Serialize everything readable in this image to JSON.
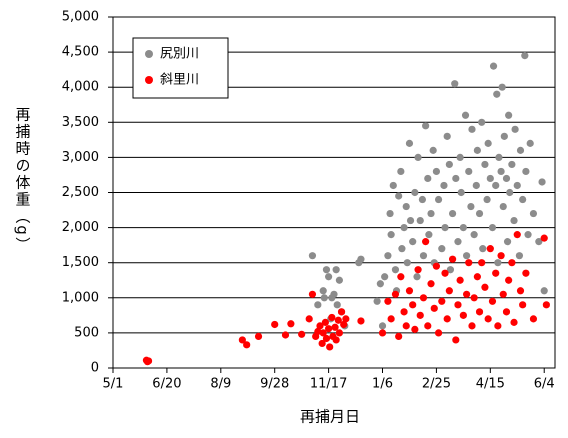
{
  "chart_data": {
    "type": "scatter",
    "x_label": "再捕月日",
    "y_label": "再捕時の体重（g）",
    "xlim": [
      0,
      410
    ],
    "ylim": [
      0,
      5000
    ],
    "xticks": [
      {
        "value": 0,
        "label": "5/1"
      },
      {
        "value": 50,
        "label": "6/20"
      },
      {
        "value": 100,
        "label": "8/9"
      },
      {
        "value": 150,
        "label": "9/28"
      },
      {
        "value": 200,
        "label": "11/17"
      },
      {
        "value": 250,
        "label": "1/6"
      },
      {
        "value": 300,
        "label": "2/25"
      },
      {
        "value": 350,
        "label": "4/15"
      },
      {
        "value": 400,
        "label": "6/4"
      }
    ],
    "yticks": [
      0,
      500,
      {
        "value": 1000,
        "label": "1,000"
      },
      {
        "value": 1500,
        "label": "1,500"
      },
      {
        "value": 2000,
        "label": "2,000"
      },
      {
        "value": 2500,
        "label": "2,500"
      },
      {
        "value": 3000,
        "label": "3,000"
      },
      {
        "value": 3500,
        "label": "3,500"
      },
      {
        "value": 4000,
        "label": "4,000"
      },
      {
        "value": 4500,
        "label": "4,500"
      },
      {
        "value": 5000,
        "label": "5,000"
      }
    ],
    "grid": true,
    "legend": "upper-left",
    "series": [
      {
        "name": "尻別川",
        "color": "#8c8c8c",
        "x": [
          185,
          190,
          195,
          198,
          200,
          203,
          205,
          207,
          210,
          212,
          215,
          202,
          208,
          230,
          228,
          196,
          250,
          252,
          255,
          257,
          258,
          260,
          262,
          263,
          265,
          267,
          268,
          270,
          272,
          273,
          275,
          276,
          278,
          280,
          282,
          283,
          285,
          287,
          288,
          290,
          292,
          293,
          295,
          297,
          298,
          300,
          302,
          305,
          307,
          308,
          310,
          312,
          313,
          315,
          317,
          318,
          320,
          322,
          323,
          325,
          327,
          328,
          330,
          332,
          333,
          335,
          337,
          338,
          340,
          342,
          343,
          345,
          347,
          348,
          350,
          352,
          353,
          355,
          356,
          357,
          358,
          360,
          361,
          362,
          363,
          365,
          366,
          367,
          368,
          370,
          372,
          373,
          375,
          377,
          378,
          380,
          382,
          383,
          385,
          387,
          390,
          395,
          398,
          400,
          245,
          248
        ],
        "values": [
          1600,
          900,
          1100,
          1400,
          1300,
          1000,
          1050,
          1400,
          1250,
          800,
          600,
          700,
          900,
          1550,
          1500,
          1000,
          600,
          1300,
          1600,
          2200,
          1900,
          2600,
          1400,
          1100,
          2450,
          2800,
          1700,
          2000,
          2300,
          1500,
          3200,
          2100,
          1800,
          2500,
          1300,
          3000,
          2100,
          2400,
          1600,
          3450,
          2700,
          1900,
          2200,
          3100,
          1500,
          2800,
          2400,
          1700,
          2600,
          2000,
          3300,
          2900,
          1400,
          2200,
          4050,
          2700,
          1800,
          3000,
          2500,
          2000,
          3600,
          1600,
          2800,
          2300,
          3400,
          1900,
          2600,
          3100,
          2200,
          3500,
          1700,
          2900,
          2400,
          3200,
          2700,
          2000,
          4300,
          2600,
          3900,
          1500,
          3000,
          2800,
          4000,
          2300,
          3300,
          2700,
          1800,
          3600,
          2500,
          2900,
          2100,
          3400,
          2600,
          1600,
          3100,
          2400,
          4450,
          2800,
          1900,
          3200,
          2200,
          1800,
          2650,
          1100,
          950,
          1200
        ]
      },
      {
        "name": "斜里川",
        "color": "#ff0000",
        "x": [
          31,
          32,
          33,
          120,
          124,
          135,
          150,
          160,
          165,
          175,
          182,
          185,
          188,
          190,
          192,
          194,
          195,
          197,
          198,
          200,
          201,
          203,
          204,
          206,
          207,
          209,
          210,
          212,
          214,
          216,
          230,
          250,
          255,
          258,
          262,
          265,
          267,
          270,
          272,
          275,
          278,
          280,
          283,
          285,
          288,
          290,
          292,
          295,
          298,
          300,
          302,
          305,
          308,
          310,
          312,
          315,
          318,
          320,
          322,
          325,
          328,
          330,
          333,
          335,
          338,
          340,
          342,
          345,
          348,
          350,
          352,
          355,
          357,
          360,
          362,
          365,
          367,
          370,
          372,
          375,
          378,
          380,
          383,
          390,
          400,
          402
        ],
        "values": [
          110,
          90,
          100,
          400,
          330,
          450,
          620,
          470,
          630,
          480,
          700,
          1050,
          450,
          520,
          600,
          350,
          500,
          650,
          420,
          560,
          300,
          720,
          450,
          580,
          400,
          680,
          500,
          800,
          620,
          700,
          670,
          500,
          950,
          700,
          1050,
          450,
          1300,
          800,
          600,
          1100,
          900,
          550,
          1400,
          750,
          1000,
          1800,
          600,
          1200,
          850,
          1450,
          500,
          950,
          1350,
          700,
          1100,
          1550,
          400,
          900,
          1250,
          750,
          1050,
          1500,
          600,
          1000,
          1300,
          800,
          1500,
          1150,
          700,
          1700,
          950,
          1350,
          600,
          1600,
          1050,
          800,
          1250,
          1500,
          650,
          1900,
          1100,
          900,
          1350,
          700,
          1850,
          900
        ]
      }
    ]
  }
}
